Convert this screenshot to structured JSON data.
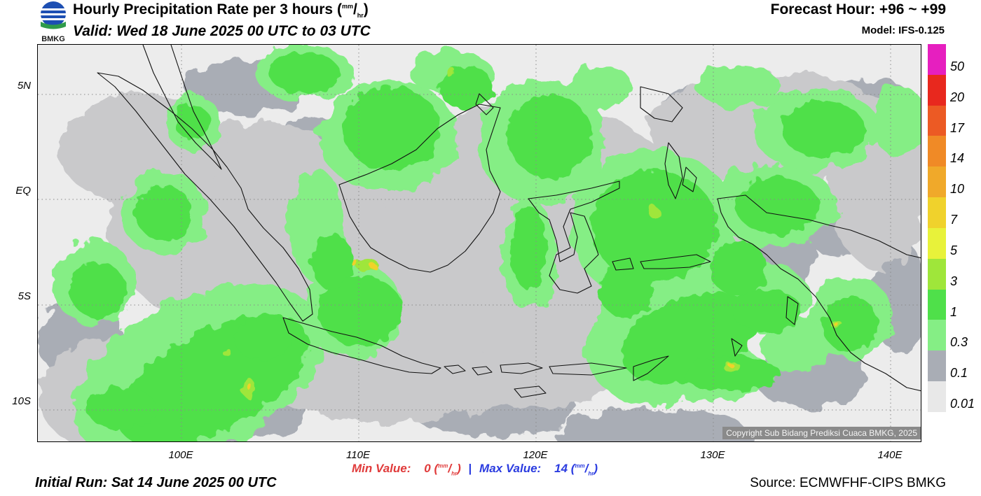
{
  "header": {
    "logo_text": "BMKG",
    "title": "Hourly Precipitation Rate per 3 hours",
    "title_unit_open": "(",
    "title_unit_num": "mm",
    "title_unit_den": "hr",
    "title_unit_close": ")",
    "valid": "Valid: Wed 18 June 2025 00 UTC to 03 UTC",
    "forecast_hour": "Forecast Hour: +96 ~ +99",
    "model": "Model: IFS-0.125"
  },
  "map": {
    "lat_labels": [
      "5N",
      "EQ",
      "5S",
      "10S"
    ],
    "lon_labels": [
      "100E",
      "110E",
      "120E",
      "130E",
      "140E"
    ],
    "copyright": "Copyright Sub Bidang Prediksi Cuaca BMKG, 2025",
    "colors": {
      "ocean_bg": "#ececec",
      "trace": "#c9c9cb",
      "light_rain": "#a9adb5",
      "rain_0_3": "#85ee85",
      "rain_1": "#4fe04a",
      "rain_3": "#9fe63a",
      "rain_5": "#e8f23a",
      "rain_7": "#f0d22c",
      "coast": "#111111"
    }
  },
  "legend": {
    "labels": [
      "50",
      "20",
      "17",
      "14",
      "10",
      "7",
      "5",
      "3",
      "1",
      "0.3",
      "0.1",
      "0.01"
    ],
    "colors": [
      "#e61fbf",
      "#e8281e",
      "#ec5a24",
      "#f08a26",
      "#f0a92a",
      "#f0d22c",
      "#e8f23a",
      "#9fe63a",
      "#4fe04a",
      "#85ee85",
      "#a9adb5",
      "#e8e8e8"
    ]
  },
  "footer": {
    "min_label": "Min Value:",
    "min_value": "0",
    "max_label": "Max Value:",
    "max_value": "14",
    "unit_num": "mm",
    "unit_den": "hr",
    "separator": "|",
    "initial_run": "Initial Run: Sat 14 June 2025 00 UTC",
    "source": "Source: ECMWFHF-CIPS BMKG"
  }
}
